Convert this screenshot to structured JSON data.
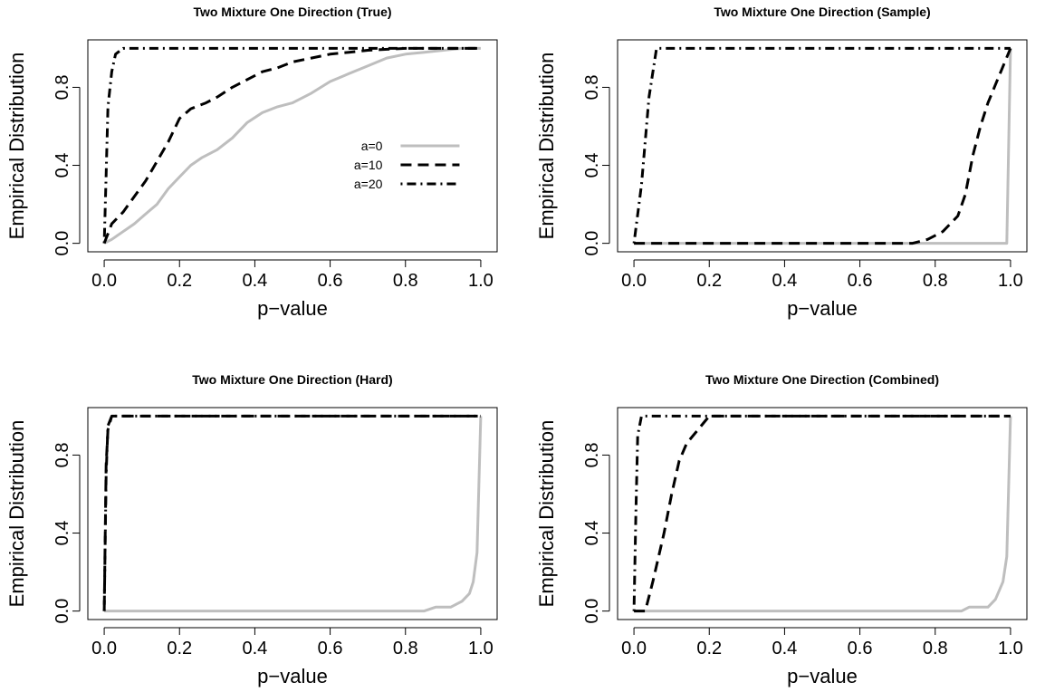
{
  "chart_data": [
    {
      "type": "line",
      "title": "Two Mixture One Direction (True)",
      "xlabel": "p−value",
      "ylabel": "Empirical Distribution",
      "xlim": [
        0,
        1
      ],
      "ylim": [
        0,
        1
      ],
      "xticks": [
        "0.0",
        "0.2",
        "0.4",
        "0.6",
        "0.8",
        "1.0"
      ],
      "yticks": [
        "0.0",
        "0.4",
        "0.8"
      ],
      "legend": {
        "position": "center-right",
        "entries": [
          "a=0",
          "a=10",
          "a=20"
        ]
      },
      "series": [
        {
          "name": "a=0",
          "color": "#bebebe",
          "dash": "solid",
          "points": [
            [
              0,
              0
            ],
            [
              0.02,
              0.02
            ],
            [
              0.05,
              0.06
            ],
            [
              0.08,
              0.1
            ],
            [
              0.11,
              0.15
            ],
            [
              0.14,
              0.2
            ],
            [
              0.17,
              0.28
            ],
            [
              0.2,
              0.34
            ],
            [
              0.23,
              0.4
            ],
            [
              0.26,
              0.44
            ],
            [
              0.3,
              0.48
            ],
            [
              0.34,
              0.54
            ],
            [
              0.38,
              0.62
            ],
            [
              0.42,
              0.67
            ],
            [
              0.46,
              0.7
            ],
            [
              0.5,
              0.72
            ],
            [
              0.55,
              0.77
            ],
            [
              0.6,
              0.83
            ],
            [
              0.65,
              0.87
            ],
            [
              0.7,
              0.91
            ],
            [
              0.75,
              0.95
            ],
            [
              0.8,
              0.97
            ],
            [
              0.85,
              0.98
            ],
            [
              0.9,
              0.99
            ],
            [
              0.95,
              1
            ],
            [
              1,
              1
            ]
          ]
        },
        {
          "name": "a=10",
          "color": "#000000",
          "dash": "dashed",
          "points": [
            [
              0,
              0
            ],
            [
              0.02,
              0.1
            ],
            [
              0.05,
              0.16
            ],
            [
              0.08,
              0.24
            ],
            [
              0.11,
              0.32
            ],
            [
              0.14,
              0.42
            ],
            [
              0.17,
              0.52
            ],
            [
              0.2,
              0.64
            ],
            [
              0.23,
              0.69
            ],
            [
              0.27,
              0.72
            ],
            [
              0.3,
              0.75
            ],
            [
              0.34,
              0.8
            ],
            [
              0.38,
              0.84
            ],
            [
              0.42,
              0.88
            ],
            [
              0.46,
              0.9
            ],
            [
              0.5,
              0.93
            ],
            [
              0.55,
              0.95
            ],
            [
              0.6,
              0.97
            ],
            [
              0.65,
              0.98
            ],
            [
              0.7,
              0.99
            ],
            [
              0.8,
              1
            ],
            [
              1,
              1
            ]
          ]
        },
        {
          "name": "a=20",
          "color": "#000000",
          "dash": "dotdash",
          "points": [
            [
              0,
              0
            ],
            [
              0.005,
              0.35
            ],
            [
              0.01,
              0.7
            ],
            [
              0.02,
              0.88
            ],
            [
              0.03,
              0.97
            ],
            [
              0.05,
              1
            ],
            [
              1,
              1
            ]
          ]
        }
      ]
    },
    {
      "type": "line",
      "title": "Two Mixture One Direction (Sample)",
      "xlabel": "p−value",
      "ylabel": "Empirical Distribution",
      "xlim": [
        0,
        1
      ],
      "ylim": [
        0,
        1
      ],
      "xticks": [
        "0.0",
        "0.2",
        "0.4",
        "0.6",
        "0.8",
        "1.0"
      ],
      "yticks": [
        "0.0",
        "0.4",
        "0.8"
      ],
      "series": [
        {
          "color": "#bebebe",
          "dash": "solid",
          "points": [
            [
              0,
              0
            ],
            [
              0.99,
              0
            ],
            [
              1,
              1
            ]
          ]
        },
        {
          "color": "#000000",
          "dash": "dashed",
          "points": [
            [
              0,
              0
            ],
            [
              0.74,
              0
            ],
            [
              0.78,
              0.02
            ],
            [
              0.82,
              0.06
            ],
            [
              0.86,
              0.14
            ],
            [
              0.88,
              0.25
            ],
            [
              0.9,
              0.45
            ],
            [
              0.92,
              0.6
            ],
            [
              0.94,
              0.72
            ],
            [
              0.97,
              0.86
            ],
            [
              1,
              1
            ]
          ]
        },
        {
          "color": "#000000",
          "dash": "dotdash",
          "points": [
            [
              0,
              0
            ],
            [
              0.02,
              0.3
            ],
            [
              0.04,
              0.75
            ],
            [
              0.06,
              1
            ],
            [
              1,
              1
            ]
          ]
        }
      ]
    },
    {
      "type": "line",
      "title": "Two Mixture One Direction (Hard)",
      "xlabel": "p−value",
      "ylabel": "Empirical Distribution",
      "xlim": [
        0,
        1
      ],
      "ylim": [
        0,
        1
      ],
      "xticks": [
        "0.0",
        "0.2",
        "0.4",
        "0.6",
        "0.8",
        "1.0"
      ],
      "yticks": [
        "0.0",
        "0.4",
        "0.8"
      ],
      "series": [
        {
          "color": "#bebebe",
          "dash": "solid",
          "points": [
            [
              0,
              0
            ],
            [
              0.85,
              0
            ],
            [
              0.88,
              0.02
            ],
            [
              0.92,
              0.02
            ],
            [
              0.95,
              0.05
            ],
            [
              0.97,
              0.09
            ],
            [
              0.98,
              0.15
            ],
            [
              0.99,
              0.3
            ],
            [
              1,
              1
            ]
          ]
        },
        {
          "color": "#000000",
          "dash": "dashed",
          "points": [
            [
              0,
              0
            ],
            [
              0.005,
              0.75
            ],
            [
              0.01,
              0.93
            ],
            [
              0.02,
              1
            ],
            [
              1,
              1
            ]
          ]
        },
        {
          "color": "#000000",
          "dash": "dotdash",
          "points": [
            [
              0,
              0
            ],
            [
              0.005,
              0.7
            ],
            [
              0.01,
              0.95
            ],
            [
              0.02,
              1
            ],
            [
              1,
              1
            ]
          ]
        }
      ]
    },
    {
      "type": "line",
      "title": "Two Mixture One Direction (Combined)",
      "xlabel": "p−value",
      "ylabel": "Empirical Distribution",
      "xlim": [
        0,
        1
      ],
      "ylim": [
        0,
        1
      ],
      "xticks": [
        "0.0",
        "0.2",
        "0.4",
        "0.6",
        "0.8",
        "1.0"
      ],
      "yticks": [
        "0.0",
        "0.4",
        "0.8"
      ],
      "series": [
        {
          "color": "#bebebe",
          "dash": "solid",
          "points": [
            [
              0,
              0
            ],
            [
              0.87,
              0
            ],
            [
              0.89,
              0.02
            ],
            [
              0.94,
              0.02
            ],
            [
              0.96,
              0.06
            ],
            [
              0.98,
              0.15
            ],
            [
              0.99,
              0.28
            ],
            [
              1,
              1
            ]
          ]
        },
        {
          "color": "#000000",
          "dash": "dashed",
          "points": [
            [
              0,
              0
            ],
            [
              0.03,
              0
            ],
            [
              0.05,
              0.15
            ],
            [
              0.08,
              0.4
            ],
            [
              0.1,
              0.6
            ],
            [
              0.12,
              0.77
            ],
            [
              0.14,
              0.86
            ],
            [
              0.17,
              0.93
            ],
            [
              0.2,
              1
            ],
            [
              1,
              1
            ]
          ]
        },
        {
          "color": "#000000",
          "dash": "dotdash",
          "points": [
            [
              0,
              0
            ],
            [
              0.005,
              0.5
            ],
            [
              0.01,
              0.9
            ],
            [
              0.02,
              1
            ],
            [
              1,
              1
            ]
          ]
        }
      ]
    }
  ]
}
